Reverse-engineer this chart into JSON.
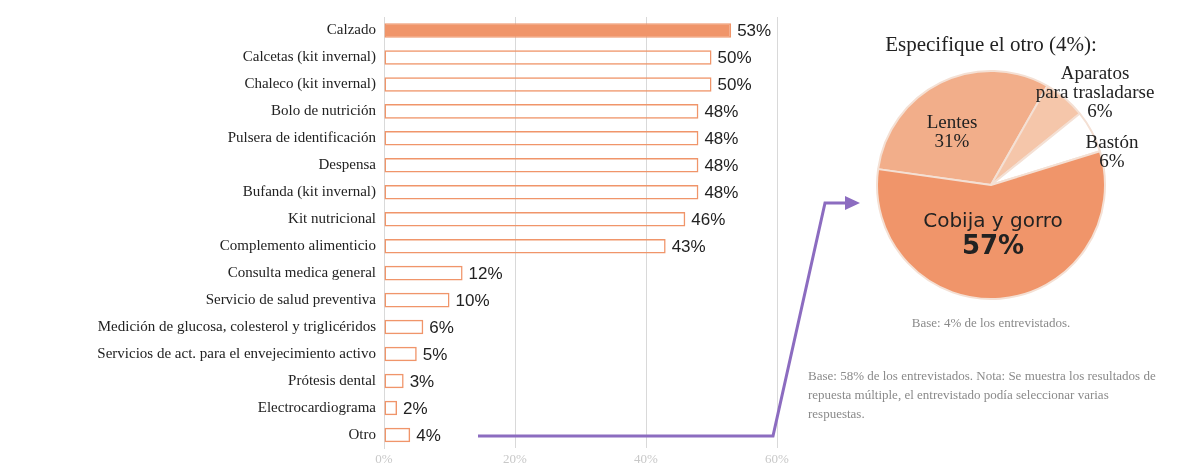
{
  "chart_data": [
    {
      "type": "bar",
      "orientation": "horizontal",
      "categories": [
        "Calzado",
        "Calcetas (kit invernal)",
        "Chaleco (kit invernal)",
        "Bolo de nutrición",
        "Pulsera de identificación",
        "Despensa",
        "Bufanda (kit invernal)",
        "Kit nutricional",
        "Complemento alimenticio",
        "Consulta medica general",
        "Servicio de salud preventiva",
        "Medición de glucosa, colesterol y triglicéridos",
        "Servicios de act. para el envejecimiento activo",
        "Prótesis dental",
        "Electrocardiograma",
        "Otro"
      ],
      "values": [
        53,
        50,
        50,
        48,
        48,
        48,
        48,
        46,
        43,
        12,
        10,
        6,
        5,
        3,
        2,
        4
      ],
      "value_labels": [
        "53%",
        "50%",
        "50%",
        "48%",
        "48%",
        "48%",
        "48%",
        "46%",
        "43%",
        "12%",
        "10%",
        "6%",
        "5%",
        "3%",
        "2%",
        "4%"
      ],
      "color": "#f0956a",
      "colors": [
        "#f0956a",
        null,
        null,
        null,
        null,
        null,
        null,
        null,
        null,
        null,
        null,
        null,
        null,
        null,
        null,
        null
      ],
      "xlim": [
        0,
        60
      ],
      "xticks": [
        {
          "value": 0,
          "label": "0%"
        },
        {
          "value": 20,
          "label": "20%"
        },
        {
          "value": 40,
          "label": "40%"
        },
        {
          "value": 60,
          "label": "60%"
        }
      ],
      "grid": "x",
      "legend": false,
      "annotations": [
        "Base: 58% de los entrevistados. Nota: Se muestra los resultados de repuesta múltiple, el entrevistado podía seleccionar varias respuestas."
      ]
    },
    {
      "type": "pie",
      "title": "Especifique el otro (4%):",
      "categories": [
        "Lentes",
        "Aparatos para trasladarse",
        "Bastón",
        "Cobija y gorro"
      ],
      "values": [
        31,
        6,
        6,
        57
      ],
      "value_labels": [
        "31%",
        "6%",
        "6%",
        "57%"
      ],
      "colors": [
        "#f2ae8a",
        "#f5c6aa",
        "#ffffff",
        "#f0956a"
      ],
      "legend": false,
      "annotations": [
        "Base: 4% de los entrevistados."
      ]
    }
  ]
}
